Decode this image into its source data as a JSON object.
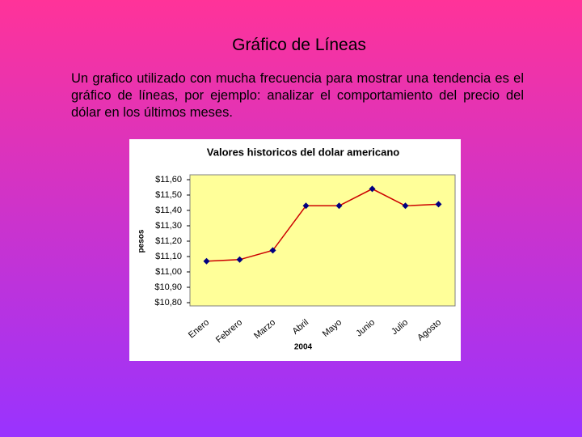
{
  "slide_title": "Gráfico de Líneas",
  "paragraph": "Un grafico utilizado con mucha frecuencia para mostrar una tendencia es el gráfico de líneas, por ejemplo:  analizar el comportamiento del precio del dólar en los últimos meses.",
  "chart_data": {
    "type": "line",
    "title": "Valores historicos del dolar americano",
    "x_label": "2004",
    "y_label": "pesos",
    "categories": [
      "Enero",
      "Febrero",
      "Marzo",
      "Abril",
      "Mayo",
      "Junio",
      "Julio",
      "Agosto"
    ],
    "series": [
      {
        "color": "#cc0000",
        "marker_color": "#000080",
        "values": [
          11.07,
          11.08,
          11.14,
          11.43,
          11.43,
          11.54,
          11.43,
          11.44
        ]
      }
    ],
    "ylim": [
      10.8,
      11.6
    ],
    "yticks": [
      {
        "value": 10.8,
        "label": "$10,80"
      },
      {
        "value": 10.9,
        "label": "$10,90"
      },
      {
        "value": 11.0,
        "label": "$11,00"
      },
      {
        "value": 11.1,
        "label": "$11,10"
      },
      {
        "value": 11.2,
        "label": "$11,20"
      },
      {
        "value": 11.3,
        "label": "$11,30"
      },
      {
        "value": 11.4,
        "label": "$11,40"
      },
      {
        "value": 11.5,
        "label": "$11,50"
      },
      {
        "value": 11.6,
        "label": "$11,60"
      }
    ],
    "plot_background": "#ffff99"
  }
}
